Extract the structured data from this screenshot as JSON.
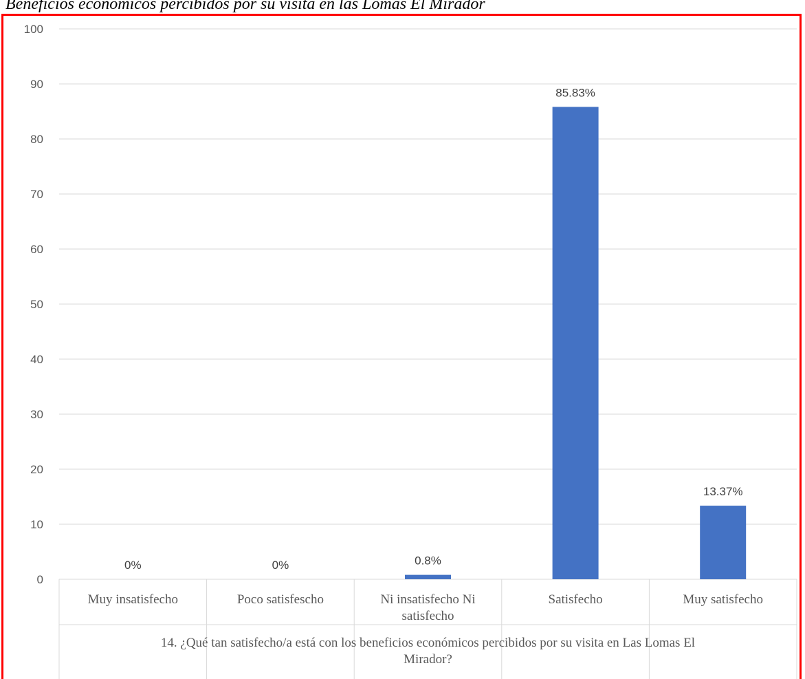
{
  "figure": {
    "title": "Beneficios económicos percibidos por su visita en las Lomas El Mirador"
  },
  "chart_data": {
    "type": "bar",
    "categories": [
      [
        "Muy insatisfecho"
      ],
      [
        "Poco satisfescho"
      ],
      [
        "Ni insatisfecho Ni",
        "satisfecho"
      ],
      [
        "Satisfecho"
      ],
      [
        "Muy satisfecho"
      ]
    ],
    "values": [
      0,
      0,
      0.8,
      85.83,
      13.37
    ],
    "data_labels": [
      "0%",
      "0%",
      "0.8%",
      "85.83%",
      "13.37%"
    ],
    "ylim": [
      0,
      100
    ],
    "yticks": [
      "0",
      "10",
      "20",
      "30",
      "40",
      "50",
      "60",
      "70",
      "80",
      "90",
      "100"
    ],
    "xlabel": [
      "14. ¿Qué tan satisfecho/a está con los beneficios económicos percibidos por su visita en Las Lomas El",
      "Mirador?"
    ],
    "grid": true,
    "legend": "none",
    "colors": {
      "bar": "#4472c4",
      "grid": "#d9d9d9",
      "frame": "#ff0000"
    }
  }
}
